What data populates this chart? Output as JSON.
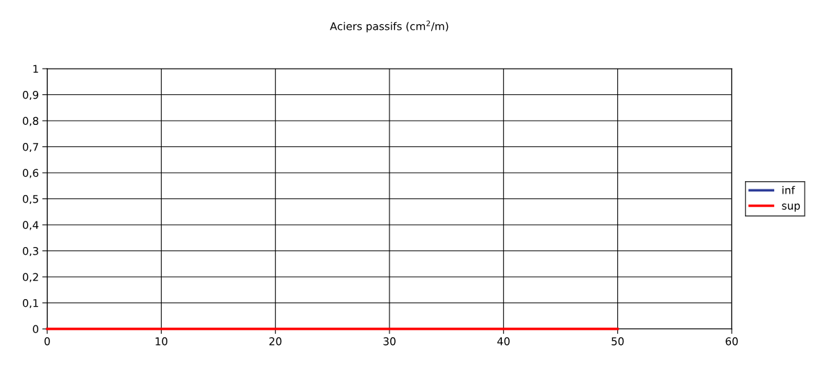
{
  "chart_data": {
    "type": "line",
    "title": "Aciers passifs (cm$^{2}$/m)",
    "series": [
      {
        "name": "inf",
        "color": "#2e3d99",
        "values": [
          null,
          null
        ]
      },
      {
        "name": "sup",
        "color": "#ff0000",
        "values": [
          0,
          0
        ]
      }
    ],
    "x": [
      0,
      50
    ],
    "xlim": [
      0,
      60
    ],
    "xticks": [
      0,
      10,
      20,
      30,
      40,
      50,
      60
    ],
    "ylim": [
      0,
      1
    ],
    "yticks": [
      {
        "value": 0,
        "label": "0"
      },
      {
        "value": 0.1,
        "label": "0,1"
      },
      {
        "value": 0.2,
        "label": "0,2"
      },
      {
        "value": 0.3,
        "label": "0,3"
      },
      {
        "value": 0.4,
        "label": "0,4"
      },
      {
        "value": 0.5,
        "label": "0,5"
      },
      {
        "value": 0.6,
        "label": "0,6"
      },
      {
        "value": 0.7,
        "label": "0,7"
      },
      {
        "value": 0.8,
        "label": "0,8"
      },
      {
        "value": 0.9,
        "label": "0,9"
      },
      {
        "value": 1,
        "label": "1"
      }
    ],
    "grid": true,
    "legend": "right",
    "marker": "none",
    "line_style": "solid"
  }
}
